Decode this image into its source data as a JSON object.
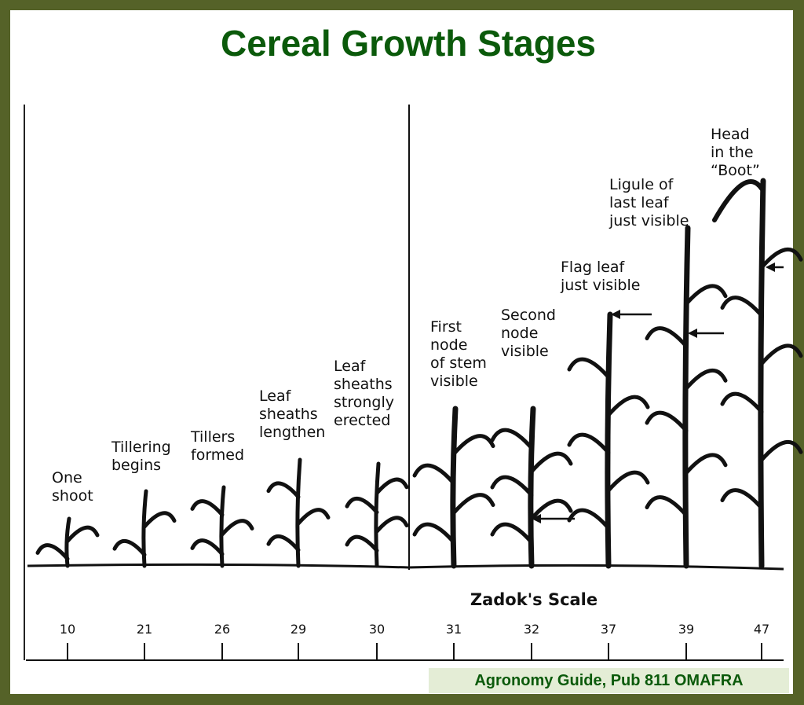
{
  "title": "Cereal Growth Stages",
  "scale_label": "Zadok's Scale",
  "credit": "Agronomy Guide, Pub 811 OMAFRA",
  "colors": {
    "frame": "#556228",
    "title": "#0b5a0b",
    "credit_bg": "#e4edd6"
  },
  "stages": [
    {
      "code": "10",
      "label": [
        "One",
        "shoot"
      ]
    },
    {
      "code": "21",
      "label": [
        "Tillering",
        "begins"
      ]
    },
    {
      "code": "26",
      "label": [
        "Tillers",
        "formed"
      ]
    },
    {
      "code": "29",
      "label": [
        "Leaf",
        "sheaths",
        "lengthen"
      ]
    },
    {
      "code": "30",
      "label": [
        "Leaf",
        "sheaths",
        "strongly",
        "erected"
      ]
    },
    {
      "code": "31",
      "label": [
        "First",
        "node",
        "of stem",
        "visible"
      ]
    },
    {
      "code": "32",
      "label": [
        "Second",
        "node",
        "visible"
      ]
    },
    {
      "code": "37",
      "label": [
        "Flag leaf",
        "just visible"
      ]
    },
    {
      "code": "39",
      "label": [
        "Ligule of",
        "last leaf",
        "just visible"
      ]
    },
    {
      "code": "47",
      "label": [
        "Head",
        "in the",
        "“Boot”"
      ]
    }
  ]
}
